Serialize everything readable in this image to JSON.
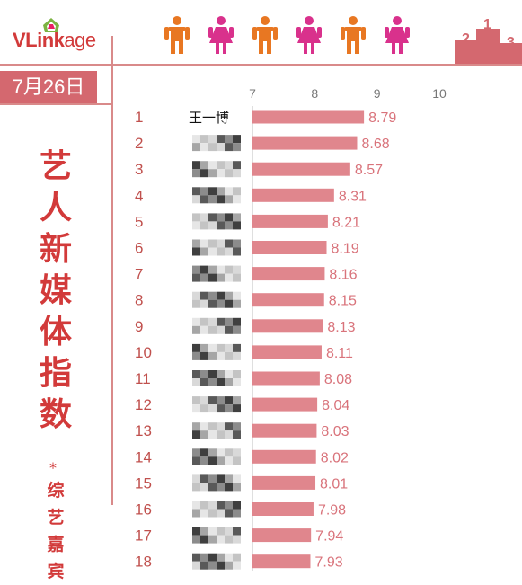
{
  "brand": {
    "name_main": "VLink",
    "name_suffix": "age"
  },
  "date": "7月26日",
  "title_chars": [
    "艺",
    "人",
    "新",
    "媒",
    "体",
    "指",
    "数"
  ],
  "title_footnote_mark": "*",
  "subtitle_chars": [
    "综",
    "艺",
    "嘉",
    "宾"
  ],
  "podium_labels": [
    "2",
    "1",
    "3"
  ],
  "colors": {
    "accent": "#d23a3a",
    "bar": "#e0868d",
    "male_icon": "#e87722",
    "female_icon": "#d9318c"
  },
  "chart_data": {
    "type": "bar",
    "orientation": "horizontal",
    "title": "艺人新媒体指数",
    "xlim": [
      7,
      10
    ],
    "xticks": [
      7,
      8,
      9,
      10
    ],
    "ranks": [
      1,
      2,
      3,
      4,
      5,
      6,
      7,
      8,
      9,
      10,
      11,
      12,
      13,
      14,
      15,
      16,
      17,
      18
    ],
    "categories": [
      "王一博",
      "",
      "",
      "",
      "",
      "",
      "",
      "",
      "",
      "",
      "",
      "",
      "",
      "",
      "",
      "",
      "",
      ""
    ],
    "values": [
      8.79,
      8.68,
      8.57,
      8.31,
      8.21,
      8.19,
      8.16,
      8.15,
      8.13,
      8.11,
      8.08,
      8.04,
      8.03,
      8.02,
      8.01,
      7.98,
      7.94,
      7.93
    ]
  }
}
